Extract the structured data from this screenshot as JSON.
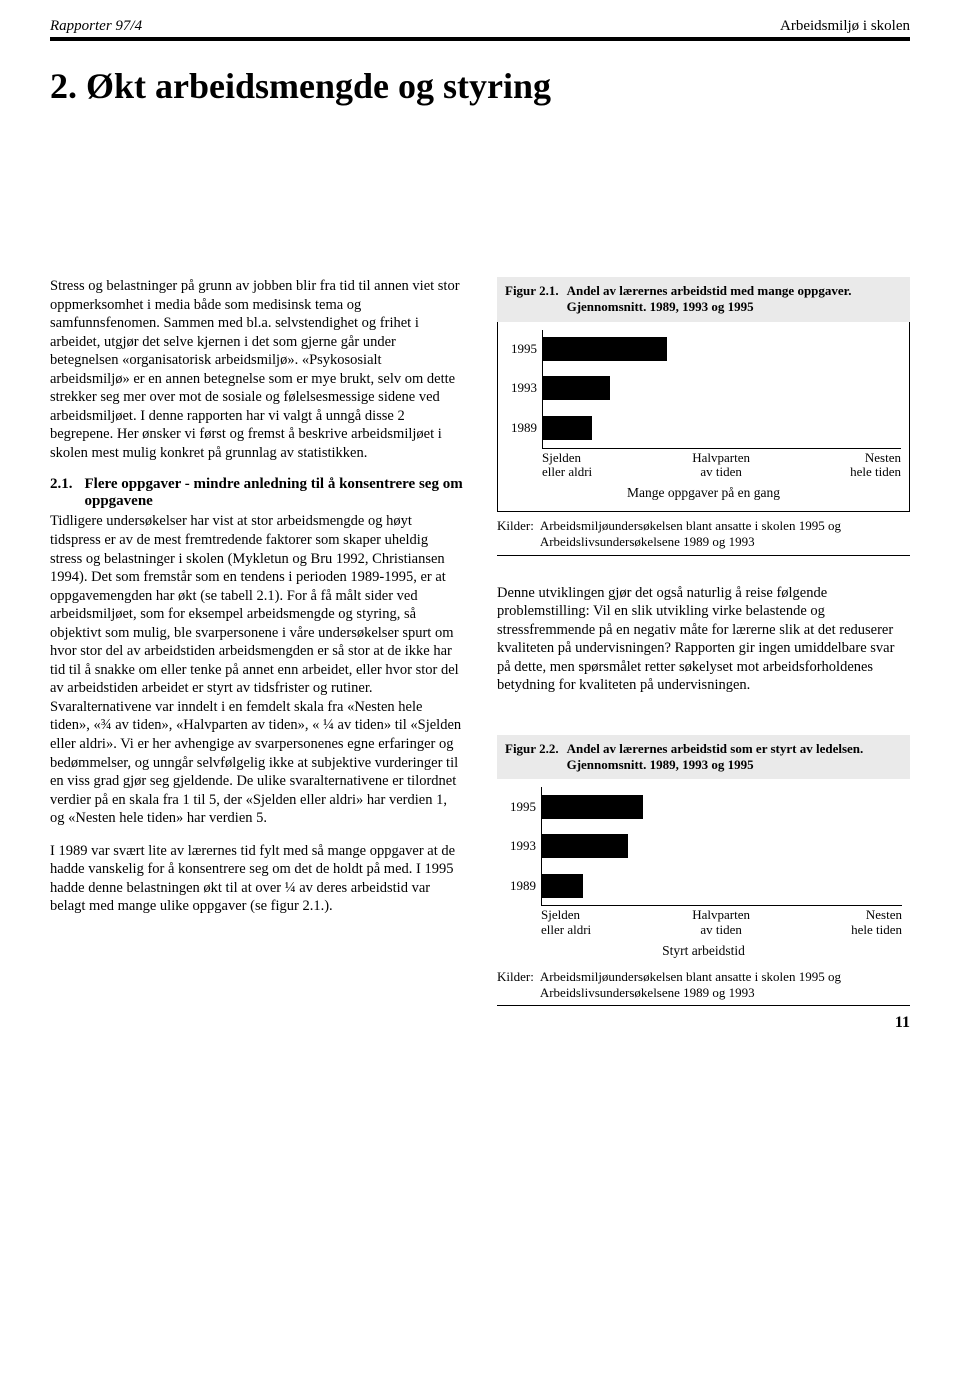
{
  "header": {
    "left": "Rapporter 97/4",
    "right": "Arbeidsmiljø i skolen"
  },
  "title": "2. Økt arbeidsmengde og styring",
  "left_col": {
    "p1": "Stress og belastninger på grunn av jobben blir fra tid til annen viet stor oppmerksomhet i media både som medisinsk tema og samfunnsfenomen. Sammen med bl.a. selvstendighet og frihet i arbeidet, utgjør det selve kjernen i det som gjerne går under betegnelsen «organisatorisk arbeidsmiljø». «Psykososialt arbeidsmiljø» er en annen betegnelse som er mye brukt, selv om dette strekker seg mer over mot de sosiale og følelsesmessige sidene ved arbeidsmiljøet. I denne rapporten har vi valgt å unngå disse 2 begrepene. Her ønsker vi først og fremst å beskrive arbeidsmiljøet i skolen mest mulig konkret på grunnlag av statistikken.",
    "sub_num": "2.1.",
    "sub_text": "Flere oppgaver - mindre anledning til å konsentrere seg om oppgavene",
    "p2": "Tidligere undersøkelser har vist at stor arbeidsmengde og høyt tidspress er av de mest fremtredende faktorer som skaper uheldig stress og belastninger i skolen (Mykletun og Bru 1992, Christiansen 1994). Det som fremstår som en tendens i perioden 1989-1995, er at oppgavemengden har økt (se tabell 2.1). For å få målt sider ved arbeidsmiljøet, som for eksempel arbeidsmengde og styring, så objektivt som mulig, ble svarpersonene i våre undersøkelser spurt om hvor stor del av arbeidstiden arbeidsmengden er så stor at de ikke har tid til å snakke om eller tenke på annet enn arbeidet, eller hvor stor del av arbeidstiden arbeidet er styrt av tidsfrister og rutiner. Svaralternativene var inndelt i en femdelt skala fra «Nesten hele tiden», «¾ av tiden», «Halvparten av tiden», « ¼ av tiden» til «Sjelden eller aldri». Vi er her avhengige av svarpersonenes egne erfaringer og bedømmelser, og unngår selvfølgelig ikke at subjektive vurderinger til en viss grad gjør seg gjeldende. De ulike svaralternativene er tilordnet verdier på en skala fra 1 til 5, der «Sjelden eller aldri» har verdien 1, og «Nesten hele tiden» har verdien 5.",
    "p3": "I 1989 var svært lite av lærernes tid fylt med så mange oppgaver at de hadde vanskelig for å konsentrere seg om det de holdt på med. I 1995 hadde denne belastningen økt til at over ¼ av deres arbeidstid var belagt med mange ulike oppgaver (se figur 2.1.)."
  },
  "right_col": {
    "p1": "Denne utviklingen gjør det også naturlig å reise følgende problemstilling: Vil en slik utvikling virke belastende og stressfremmende på en negativ måte for lærerne slik at det reduserer kvaliteten på undervisningen? Rapporten gir ingen umiddelbare svar på dette, men spørsmålet retter søkelyset mot arbeidsforholdenes betydning for kvaliteten på undervisningen."
  },
  "fig1": {
    "num": "Figur 2.1.",
    "title": "Andel av lærernes arbeidstid med mange oppgaver. Gjennomsnitt. 1989, 1993 og 1995",
    "type": "bar",
    "categories": [
      "1995",
      "1993",
      "1989"
    ],
    "values": [
      2.38,
      1.75,
      1.55
    ],
    "xlim": [
      1,
      5
    ],
    "bar_color": "#000000",
    "axis_left": "Sjelden\neller aldri",
    "axis_mid": "Halvparten\nav tiden",
    "axis_right": "Nesten\nhele tiden",
    "xlabel": "Mange oppgaver på en gang",
    "sources_label": "Kilder:",
    "sources": "Arbeidsmiljøundersøkelsen blant ansatte i skolen 1995 og Arbeidslivsundersøkelsene 1989 og 1993"
  },
  "fig2": {
    "num": "Figur 2.2.",
    "title": "Andel av lærernes arbeidstid som er styrt av ledelsen. Gjennomsnitt. 1989, 1993 og 1995",
    "type": "bar",
    "categories": [
      "1995",
      "1993",
      "1989"
    ],
    "values": [
      2.12,
      1.95,
      1.45
    ],
    "xlim": [
      1,
      5
    ],
    "bar_color": "#000000",
    "axis_left": "Sjelden\neller aldri",
    "axis_mid": "Halvparten\nav tiden",
    "axis_right": "Nesten\nhele tiden",
    "xlabel": "Styrt arbeidstid",
    "sources_label": "Kilder:",
    "sources": "Arbeidsmiljøundersøkelsen blant ansatte i skolen 1995 og Arbeidslivsundersøkelsene 1989 og 1993"
  },
  "page_number": "11"
}
